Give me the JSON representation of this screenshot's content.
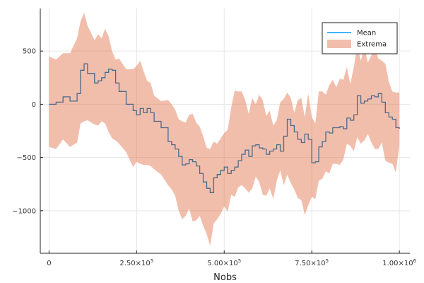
{
  "chart_data": {
    "type": "line",
    "title": "",
    "xlabel": "Nobs",
    "ylabel": "",
    "xlim": [
      -25000,
      1030000
    ],
    "ylim": [
      -1400,
      900
    ],
    "grid": true,
    "legend_position": "top-right",
    "x_ticks": [
      {
        "value": 0,
        "mantissa": "0",
        "exp": ""
      },
      {
        "value": 250000,
        "mantissa": "2.50×10",
        "exp": "5"
      },
      {
        "value": 500000,
        "mantissa": "5.00×10",
        "exp": "5"
      },
      {
        "value": 750000,
        "mantissa": "7.50×10",
        "exp": "5"
      },
      {
        "value": 1000000,
        "mantissa": "1.00×10",
        "exp": "6"
      }
    ],
    "y_ticks": [
      {
        "value": 500,
        "label": "500"
      },
      {
        "value": 0,
        "label": "0"
      },
      {
        "value": -500,
        "label": "−500"
      },
      {
        "value": -1000,
        "label": "−1000"
      }
    ],
    "series": [
      {
        "name": "Mean",
        "kind": "step",
        "color": "#009AFA",
        "x": [
          0,
          20000,
          40000,
          60000,
          80000,
          90000,
          100000,
          110000,
          130000,
          140000,
          150000,
          160000,
          170000,
          180000,
          190000,
          200000,
          220000,
          240000,
          250000,
          260000,
          270000,
          280000,
          290000,
          300000,
          320000,
          340000,
          350000,
          360000,
          370000,
          380000,
          390000,
          400000,
          410000,
          420000,
          430000,
          440000,
          450000,
          460000,
          470000,
          480000,
          490000,
          500000,
          510000,
          520000,
          530000,
          540000,
          550000,
          560000,
          570000,
          580000,
          590000,
          600000,
          610000,
          620000,
          630000,
          640000,
          650000,
          660000,
          670000,
          680000,
          690000,
          700000,
          710000,
          720000,
          730000,
          740000,
          750000,
          760000,
          770000,
          780000,
          790000,
          800000,
          810000,
          820000,
          830000,
          840000,
          850000,
          860000,
          870000,
          880000,
          890000,
          900000,
          910000,
          920000,
          930000,
          940000,
          950000,
          960000,
          970000,
          980000,
          990000,
          1000000
        ],
        "y": [
          0,
          20,
          70,
          30,
          100,
          320,
          380,
          290,
          200,
          220,
          250,
          300,
          330,
          320,
          200,
          120,
          0,
          -60,
          -100,
          -40,
          -80,
          -40,
          -80,
          -160,
          -220,
          -350,
          -380,
          -420,
          -490,
          -570,
          -560,
          -520,
          -540,
          -580,
          -650,
          -730,
          -790,
          -830,
          -690,
          -660,
          -620,
          -590,
          -650,
          -620,
          -590,
          -530,
          -470,
          -430,
          -490,
          -390,
          -380,
          -410,
          -420,
          -470,
          -440,
          -420,
          -380,
          -440,
          -300,
          -140,
          -200,
          -260,
          -330,
          -360,
          -280,
          -330,
          -550,
          -540,
          -400,
          -350,
          -260,
          -270,
          -220,
          -220,
          -210,
          -230,
          -130,
          -150,
          -100,
          80,
          10,
          30,
          50,
          80,
          70,
          100,
          20,
          -80,
          -120,
          -140,
          -220,
          -230
        ]
      },
      {
        "name": "Extrema",
        "kind": "band",
        "color": "#E26F46",
        "x": [
          0,
          20000,
          40000,
          60000,
          80000,
          90000,
          100000,
          110000,
          130000,
          140000,
          150000,
          160000,
          170000,
          180000,
          190000,
          200000,
          220000,
          240000,
          250000,
          260000,
          270000,
          280000,
          290000,
          300000,
          320000,
          340000,
          350000,
          360000,
          370000,
          380000,
          390000,
          400000,
          410000,
          420000,
          430000,
          440000,
          450000,
          460000,
          470000,
          480000,
          490000,
          500000,
          510000,
          520000,
          530000,
          540000,
          550000,
          560000,
          570000,
          580000,
          590000,
          600000,
          610000,
          620000,
          630000,
          640000,
          650000,
          660000,
          670000,
          680000,
          690000,
          700000,
          710000,
          720000,
          730000,
          740000,
          750000,
          760000,
          770000,
          780000,
          790000,
          800000,
          810000,
          820000,
          830000,
          840000,
          850000,
          860000,
          870000,
          880000,
          890000,
          900000,
          910000,
          920000,
          930000,
          940000,
          950000,
          960000,
          970000,
          980000,
          990000,
          1000000
        ],
        "lower": [
          -400,
          -420,
          -330,
          -400,
          -360,
          -180,
          -160,
          -150,
          -190,
          -200,
          -160,
          -180,
          -260,
          -320,
          -340,
          -370,
          -450,
          -590,
          -540,
          -560,
          -570,
          -570,
          -580,
          -610,
          -660,
          -760,
          -800,
          -860,
          -1000,
          -1080,
          -1050,
          -980,
          -1100,
          -1090,
          -1050,
          -1140,
          -1220,
          -1330,
          -1120,
          -1080,
          -1030,
          -960,
          -1010,
          -850,
          -870,
          -780,
          -760,
          -790,
          -830,
          -790,
          -680,
          -730,
          -850,
          -860,
          -790,
          -890,
          -720,
          -620,
          -760,
          -660,
          -740,
          -800,
          -880,
          -900,
          -1040,
          -950,
          -870,
          -890,
          -720,
          -700,
          -630,
          -650,
          -560,
          -560,
          -570,
          -520,
          -370,
          -390,
          -440,
          -310,
          -370,
          -340,
          -280,
          -360,
          -420,
          -420,
          -360,
          -530,
          -550,
          -560,
          -640,
          -380
        ],
        "upper": [
          450,
          420,
          480,
          480,
          620,
          780,
          860,
          740,
          600,
          660,
          620,
          710,
          640,
          500,
          420,
          430,
          330,
          330,
          360,
          410,
          310,
          220,
          200,
          80,
          30,
          40,
          0,
          -50,
          -140,
          -160,
          -170,
          -100,
          -90,
          -170,
          -210,
          -300,
          -410,
          -420,
          -350,
          -370,
          -320,
          -270,
          -240,
          -30,
          130,
          120,
          120,
          40,
          -90,
          60,
          0,
          90,
          40,
          -110,
          -60,
          -200,
          -150,
          20,
          50,
          110,
          60,
          -80,
          40,
          60,
          -120,
          100,
          -120,
          -180,
          120,
          120,
          90,
          180,
          230,
          160,
          240,
          230,
          350,
          190,
          350,
          550,
          410,
          540,
          390,
          460,
          530,
          430,
          410,
          380,
          210,
          120,
          110,
          110
        ]
      }
    ]
  }
}
